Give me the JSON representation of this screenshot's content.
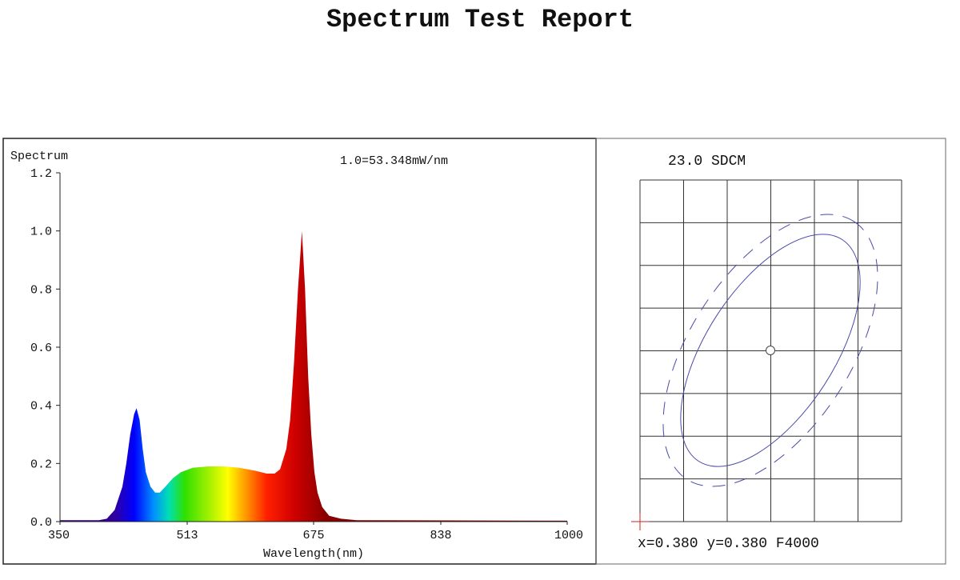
{
  "title": "Spectrum Test Report",
  "chart_data": [
    {
      "type": "area",
      "ylabel": "Spectrum",
      "xlabel": "Wavelength(nm)",
      "annotation": "1.0=53.348mW/nm",
      "xlim": [
        350,
        1000
      ],
      "ylim": [
        0,
        1.2
      ],
      "xticks": [
        "350",
        "513",
        "675",
        "838",
        "1000"
      ],
      "yticks": [
        "0.0",
        "0.2",
        "0.4",
        "0.6",
        "0.8",
        "1.0",
        "1.2"
      ],
      "grid": false,
      "fill": "wavelength-colored spectrum",
      "x": [
        350,
        400,
        410,
        420,
        430,
        435,
        440,
        445,
        448,
        452,
        456,
        460,
        466,
        472,
        478,
        485,
        495,
        505,
        520,
        540,
        560,
        580,
        600,
        615,
        625,
        632,
        640,
        645,
        650,
        655,
        660,
        664,
        668,
        672,
        676,
        680,
        686,
        695,
        710,
        730,
        1000
      ],
      "y": [
        0.005,
        0.005,
        0.01,
        0.04,
        0.12,
        0.2,
        0.3,
        0.37,
        0.39,
        0.35,
        0.25,
        0.17,
        0.12,
        0.1,
        0.1,
        0.12,
        0.15,
        0.17,
        0.185,
        0.19,
        0.19,
        0.185,
        0.175,
        0.165,
        0.165,
        0.18,
        0.25,
        0.35,
        0.55,
        0.8,
        1.0,
        0.8,
        0.5,
        0.3,
        0.17,
        0.1,
        0.05,
        0.02,
        0.01,
        0.005,
        0.003
      ]
    },
    {
      "type": "scatter",
      "title": "23.0 SDCM",
      "readout": "x=0.380 y=0.380 F4000",
      "point": {
        "x": 0.38,
        "y": 0.38
      },
      "grid": true,
      "ellipse_color": "#4a4aa8",
      "marker_color": "#d02020"
    }
  ]
}
